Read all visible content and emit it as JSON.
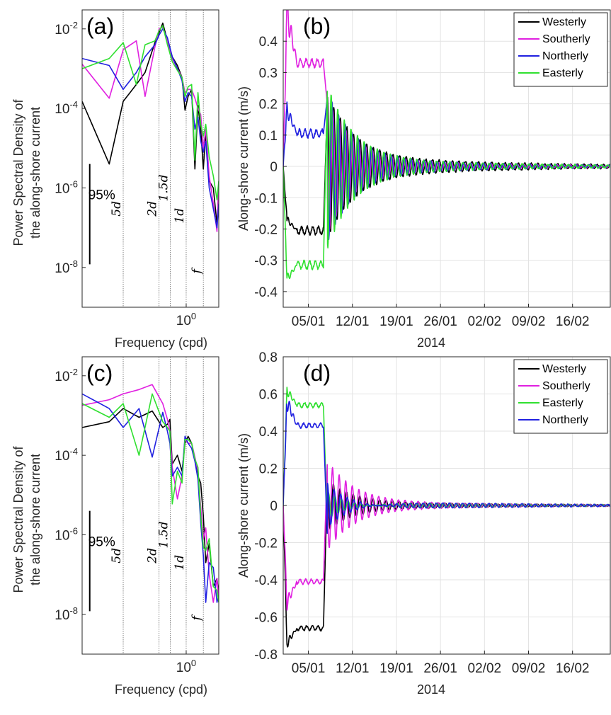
{
  "colors": {
    "Westerly": "#000000",
    "Southerly": "#e020e0",
    "Northerly": "#2020e0",
    "Easterly": "#30e030",
    "grid": "#e3e3e3",
    "axis": "#262626"
  },
  "chart_data": [
    {
      "panel": "(a)",
      "type": "line",
      "xscale": "log",
      "yscale": "log",
      "xlabel": "Frequency (cpd)",
      "ylabel": [
        "Power Spectral Density of",
        "the along-shore current"
      ],
      "xlim": [
        0.07,
        2.3
      ],
      "ylim": [
        1e-09,
        0.03
      ],
      "xticks": [
        {
          "v": 1,
          "label": "10^0"
        }
      ],
      "yticks": [
        {
          "v": 0.01,
          "label": "10^-2"
        },
        {
          "v": 0.0001,
          "label": "10^-4"
        },
        {
          "v": 1e-06,
          "label": "10^-6"
        },
        {
          "v": 1e-08,
          "label": "10^-8"
        }
      ],
      "period_lines": [
        {
          "v": 0.2,
          "label": "5d",
          "ly": 3e-07
        },
        {
          "v": 0.5,
          "label": "2d",
          "ly": 3e-07
        },
        {
          "v": 0.6667,
          "label": "1.5d",
          "ly": 1e-06
        },
        {
          "v": 1.0,
          "label": "1d",
          "ly": 2e-07
        },
        {
          "v": 1.55,
          "label": "f",
          "ly": 8e-09
        }
      ],
      "confidence": {
        "label": "95%",
        "x": 0.085,
        "y_top": 4e-06,
        "y_bottom": 1.2e-08
      },
      "series": [
        {
          "name": "Westerly",
          "x": [
            0.07,
            0.14,
            0.2,
            0.28,
            0.35,
            0.45,
            0.5,
            0.55,
            0.62,
            0.7,
            0.8,
            0.9,
            0.97,
            1.05,
            1.15,
            1.25,
            1.35,
            1.45,
            1.55,
            1.65,
            1.8,
            2.0,
            2.2,
            2.3
          ],
          "y": [
            0.00015,
            4e-06,
            0.00015,
            0.0004,
            0.0008,
            0.0045,
            0.008,
            0.014,
            0.005,
            0.002,
            0.0012,
            0.0006,
            9e-05,
            0.0002,
            0.0003,
            3e-06,
            0.00012,
            3e-05,
            3e-06,
            2.5e-05,
            1.5e-06,
            1e-06,
            1.2e-07,
            1e-06
          ]
        },
        {
          "name": "Southerly",
          "x": [
            0.07,
            0.14,
            0.2,
            0.28,
            0.35,
            0.45,
            0.5,
            0.55,
            0.62,
            0.7,
            0.8,
            0.9,
            0.97,
            1.05,
            1.15,
            1.25,
            1.35,
            1.45,
            1.55,
            1.65,
            1.8,
            2.0,
            2.2,
            2.3
          ],
          "y": [
            0.0013,
            0.00018,
            0.003,
            0.005,
            0.0002,
            0.0035,
            0.01,
            0.011,
            0.005,
            0.0018,
            0.001,
            0.0006,
            0.00025,
            0.0003,
            0.0003,
            0.00018,
            0.0001,
            7e-05,
            1e-05,
            3e-05,
            2e-06,
            4e-07,
            8e-08,
            1.2e-06
          ]
        },
        {
          "name": "Northerly",
          "x": [
            0.07,
            0.14,
            0.2,
            0.28,
            0.35,
            0.45,
            0.5,
            0.55,
            0.62,
            0.7,
            0.8,
            0.9,
            0.97,
            1.05,
            1.15,
            1.25,
            1.35,
            1.45,
            1.55,
            1.65,
            1.8,
            2.0,
            2.2,
            2.3
          ],
          "y": [
            0.0018,
            0.0012,
            0.0003,
            0.0008,
            0.002,
            0.004,
            0.007,
            0.01,
            0.006,
            0.002,
            0.001,
            0.0005,
            0.00015,
            0.00025,
            0.0002,
            3e-05,
            6e-05,
            1.5e-05,
            8e-06,
            1.5e-05,
            1e-06,
            3e-07,
            1e-07,
            4e-07
          ]
        },
        {
          "name": "Easterly",
          "x": [
            0.07,
            0.14,
            0.2,
            0.28,
            0.35,
            0.45,
            0.5,
            0.55,
            0.62,
            0.7,
            0.8,
            0.9,
            0.97,
            1.05,
            1.15,
            1.25,
            1.35,
            1.45,
            1.55,
            1.65,
            1.8,
            2.0,
            2.2,
            2.3
          ],
          "y": [
            0.001,
            0.0018,
            0.0045,
            0.0004,
            0.004,
            0.005,
            0.009,
            0.012,
            0.004,
            0.0015,
            0.0009,
            0.0006,
            0.0002,
            0.00035,
            0.0004,
            5e-06,
            0.00025,
            4e-05,
            2e-05,
            4e-05,
            6e-06,
            2e-06,
            5e-07,
            1.5e-06
          ]
        }
      ]
    },
    {
      "panel": "(b)",
      "type": "line",
      "xlabel": "2014",
      "ylabel": "Along-shore current (m/s)",
      "xlim": [
        0,
        52
      ],
      "ylim": [
        -0.45,
        0.5
      ],
      "xticks": [
        {
          "v": 4,
          "label": "05/01"
        },
        {
          "v": 11,
          "label": "12/01"
        },
        {
          "v": 18,
          "label": "19/01"
        },
        {
          "v": 25,
          "label": "26/01"
        },
        {
          "v": 32,
          "label": "02/02"
        },
        {
          "v": 39,
          "label": "09/02"
        },
        {
          "v": 46,
          "label": "16/02"
        }
      ],
      "yticks": [
        {
          "v": -0.4,
          "label": "-0.4"
        },
        {
          "v": -0.3,
          "label": "-0.3"
        },
        {
          "v": -0.2,
          "label": "-0.2"
        },
        {
          "v": -0.1,
          "label": "-0.1"
        },
        {
          "v": 0,
          "label": "0"
        },
        {
          "v": 0.1,
          "label": "0.1"
        },
        {
          "v": 0.2,
          "label": "0.2"
        },
        {
          "v": 0.3,
          "label": "0.3"
        },
        {
          "v": 0.4,
          "label": "0.4"
        }
      ],
      "legend": [
        "Westerly",
        "Southerly",
        "Northerly",
        "Easterly"
      ],
      "legend_position": "top-right",
      "series": [
        {
          "name": "Westerly",
          "plateau": -0.205,
          "peak": -0.17,
          "osc0": 0.2,
          "phase": 0.0,
          "post_amp": 0.035
        },
        {
          "name": "Southerly",
          "plateau": 0.33,
          "peak": 0.49,
          "osc0": 0.2,
          "phase": 1.2,
          "post_amp": 0.02
        },
        {
          "name": "Northerly",
          "plateau": 0.105,
          "peak": 0.18,
          "osc0": 0.22,
          "phase": 2.4,
          "post_amp": 0.025
        },
        {
          "name": "Easterly",
          "plateau": -0.315,
          "peak": -0.36,
          "osc0": 0.24,
          "phase": 3.6,
          "post_amp": 0.025
        }
      ]
    },
    {
      "panel": "(c)",
      "type": "line",
      "xscale": "log",
      "yscale": "log",
      "xlabel": "Frequency (cpd)",
      "ylabel": [
        "Power Spectral Density of",
        "the along-shore current"
      ],
      "xlim": [
        0.07,
        2.3
      ],
      "ylim": [
        1e-09,
        0.03
      ],
      "xticks": [
        {
          "v": 1,
          "label": "10^0"
        }
      ],
      "yticks": [
        {
          "v": 0.01,
          "label": "10^-2"
        },
        {
          "v": 0.0001,
          "label": "10^-4"
        },
        {
          "v": 1e-06,
          "label": "10^-6"
        },
        {
          "v": 1e-08,
          "label": "10^-8"
        }
      ],
      "period_lines": [
        {
          "v": 0.2,
          "label": "5d",
          "ly": 3e-07
        },
        {
          "v": 0.5,
          "label": "2d",
          "ly": 3e-07
        },
        {
          "v": 0.6667,
          "label": "1.5d",
          "ly": 1e-06
        },
        {
          "v": 1.0,
          "label": "1d",
          "ly": 2e-07
        },
        {
          "v": 1.55,
          "label": "f",
          "ly": 8e-09
        }
      ],
      "confidence": {
        "label": "95%",
        "x": 0.085,
        "y_top": 4e-06,
        "y_bottom": 1.2e-08
      },
      "series": [
        {
          "name": "Westerly",
          "x": [
            0.07,
            0.14,
            0.2,
            0.3,
            0.42,
            0.55,
            0.62,
            0.66,
            0.7,
            0.8,
            0.9,
            0.97,
            1.05,
            1.15,
            1.25,
            1.35,
            1.45,
            1.55,
            1.65,
            1.8,
            2.0,
            2.2,
            2.3
          ],
          "y": [
            0.0005,
            0.0007,
            0.0015,
            0.0009,
            0.0013,
            0.0005,
            0.0006,
            0.0008,
            6e-05,
            0.0001,
            4e-05,
            0.0002,
            0.0003,
            0.0002,
            8e-05,
            3e-05,
            2e-05,
            3e-06,
            2e-07,
            6e-07,
            5e-08,
            8e-08,
            3e-08
          ]
        },
        {
          "name": "Southerly",
          "x": [
            0.07,
            0.14,
            0.2,
            0.3,
            0.42,
            0.55,
            0.62,
            0.66,
            0.7,
            0.8,
            0.9,
            0.97,
            1.05,
            1.15,
            1.25,
            1.35,
            1.45,
            1.55,
            1.65,
            1.8,
            2.0,
            2.2,
            2.3
          ],
          "y": [
            0.0018,
            0.0025,
            0.0035,
            0.0045,
            0.006,
            0.002,
            0.0008,
            0.0004,
            5e-05,
            8e-06,
            3e-05,
            0.00025,
            0.0002,
            0.0002,
            9e-05,
            4e-05,
            5e-06,
            8e-07,
            1.5e-06,
            1e-07,
            2e-08,
            8e-08,
            2e-08
          ]
        },
        {
          "name": "Northerly",
          "x": [
            0.07,
            0.14,
            0.2,
            0.3,
            0.42,
            0.55,
            0.62,
            0.66,
            0.7,
            0.8,
            0.9,
            0.97,
            1.05,
            1.15,
            1.25,
            1.35,
            1.45,
            1.55,
            1.65,
            1.8,
            2.0,
            2.2,
            2.3
          ],
          "y": [
            0.0035,
            0.0015,
            0.0005,
            0.0015,
            9e-05,
            0.0012,
            0.0004,
            0.0002,
            3e-05,
            5e-05,
            3e-05,
            0.0003,
            0.0002,
            0.00015,
            7e-05,
            2.5e-05,
            2e-06,
            3e-07,
            2e-08,
            2e-07,
            1.5e-07,
            2e-08,
            3e-08
          ]
        },
        {
          "name": "Easterly",
          "x": [
            0.07,
            0.14,
            0.2,
            0.3,
            0.42,
            0.55,
            0.62,
            0.66,
            0.7,
            0.8,
            0.9,
            0.97,
            1.05,
            1.15,
            1.25,
            1.35,
            1.45,
            1.55,
            1.65,
            1.8,
            2.0,
            2.2,
            2.3
          ],
          "y": [
            0.002,
            0.0009,
            0.002,
            0.0001,
            0.0035,
            0.0007,
            0.0005,
            0.0004,
            6e-06,
            4e-05,
            2e-05,
            0.00025,
            0.00025,
            0.0002,
            8e-05,
            5e-05,
            3e-06,
            5e-07,
            4e-07,
            8e-07,
            5e-08,
            4e-08,
            2e-08
          ]
        }
      ]
    },
    {
      "panel": "(d)",
      "type": "line",
      "xlabel": "2014",
      "ylabel": "Along-shore current (m/s)",
      "xlim": [
        0,
        52
      ],
      "ylim": [
        -0.8,
        0.8
      ],
      "xticks": [
        {
          "v": 4,
          "label": "05/01"
        },
        {
          "v": 11,
          "label": "12/01"
        },
        {
          "v": 18,
          "label": "19/01"
        },
        {
          "v": 25,
          "label": "26/01"
        },
        {
          "v": 32,
          "label": "02/02"
        },
        {
          "v": 39,
          "label": "09/02"
        },
        {
          "v": 46,
          "label": "16/02"
        }
      ],
      "yticks": [
        {
          "v": -0.8,
          "label": "-0.8"
        },
        {
          "v": -0.6,
          "label": "-0.6"
        },
        {
          "v": -0.4,
          "label": "-0.4"
        },
        {
          "v": -0.2,
          "label": "-0.2"
        },
        {
          "v": 0,
          "label": "0"
        },
        {
          "v": 0.2,
          "label": "0.2"
        },
        {
          "v": 0.4,
          "label": "0.4"
        },
        {
          "v": 0.6,
          "label": "0.6"
        },
        {
          "v": 0.8,
          "label": "0.8"
        }
      ],
      "legend": [
        "Westerly",
        "Southerly",
        "Easterly",
        "Northerly"
      ],
      "legend_position": "top-right",
      "series": [
        {
          "name": "Westerly",
          "plateau": -0.66,
          "peak": -0.74,
          "osc0": 0.12,
          "phase": 0.5,
          "post_amp": 0.02
        },
        {
          "name": "Southerly",
          "plateau": -0.41,
          "peak": -0.52,
          "osc0": 0.22,
          "phase": 1.7,
          "post_amp": 0.025
        },
        {
          "name": "Easterly",
          "plateau": 0.54,
          "peak": 0.62,
          "osc0": -0.1,
          "phase": 2.9,
          "post_amp": 0.025
        },
        {
          "name": "Northerly",
          "plateau": 0.43,
          "peak": 0.56,
          "osc0": -0.15,
          "phase": 4.1,
          "post_amp": 0.03
        }
      ]
    }
  ]
}
